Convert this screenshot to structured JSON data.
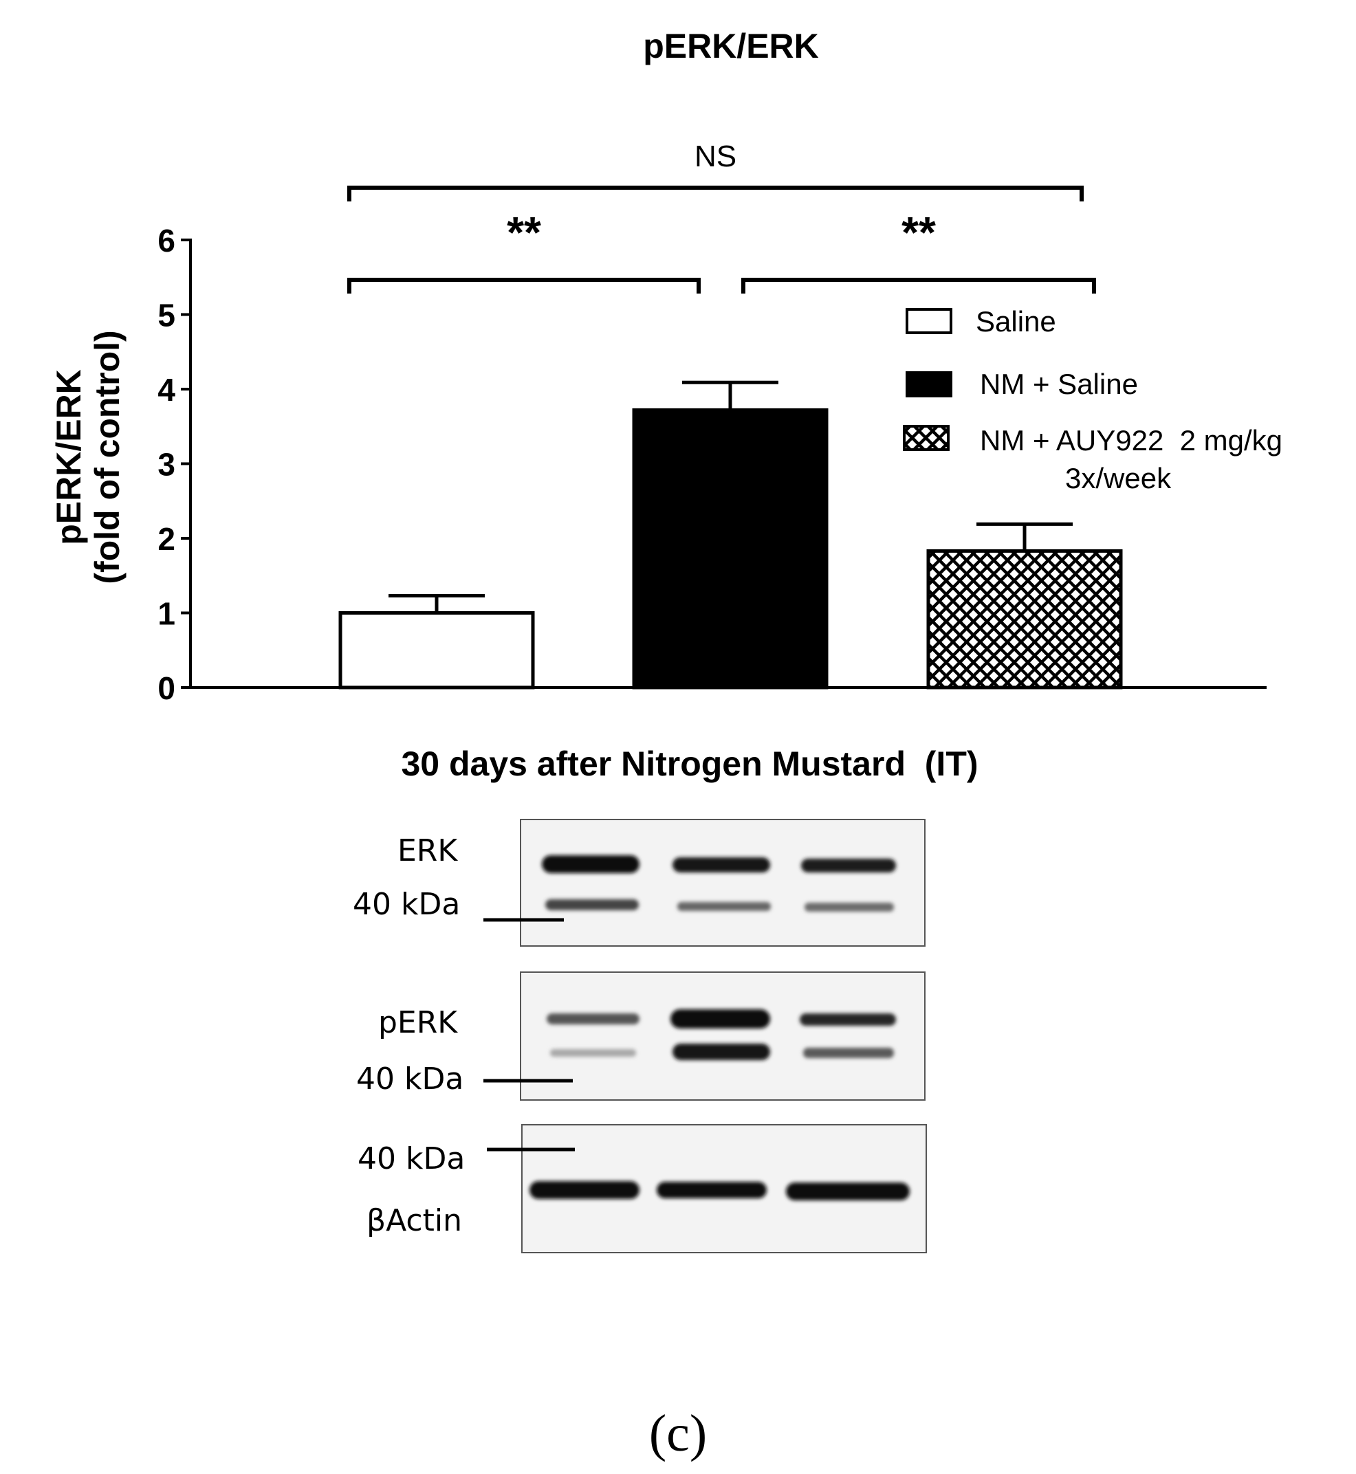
{
  "chart_data": {
    "type": "bar",
    "title": "pERK/ERK",
    "ylabel_line1": "pERK/ERK",
    "ylabel_line2": "(fold of control)",
    "xlabel": "",
    "ylim": [
      0,
      6
    ],
    "yticks": [
      0,
      1,
      2,
      3,
      4,
      5,
      6
    ],
    "categories": [
      "Saline",
      "NM + Saline",
      "NM + AUY922  2 mg/kg 3x/week"
    ],
    "values": [
      1.0,
      3.72,
      1.83
    ],
    "errors": [
      0.23,
      0.37,
      0.36
    ],
    "fills": [
      "white",
      "black",
      "crosshatch"
    ],
    "legend": {
      "placement": "top-right",
      "entries": [
        {
          "label": "Saline"
        },
        {
          "label": "NM + Saline"
        },
        {
          "label": "NM + AUY922  2 mg/kg",
          "label_line2": "3x/week"
        }
      ]
    },
    "significance": [
      {
        "from": 0,
        "to": 2,
        "label": "NS"
      },
      {
        "from": 0,
        "to": 1,
        "label": "**"
      },
      {
        "from": 1,
        "to": 2,
        "label": "**"
      }
    ]
  },
  "blot": {
    "title": "30 days after Nitrogen Mustard  (IT)",
    "panels": [
      {
        "name": "ERK",
        "marker": "40 kDa"
      },
      {
        "name": "pERK",
        "marker": "40 kDa"
      },
      {
        "name": "βActin",
        "marker": "40 kDa"
      }
    ]
  },
  "panel_label": "(c)",
  "colors": {
    "ink": "#000000",
    "background": "#ffffff",
    "membrane": "#f3f3f3"
  }
}
